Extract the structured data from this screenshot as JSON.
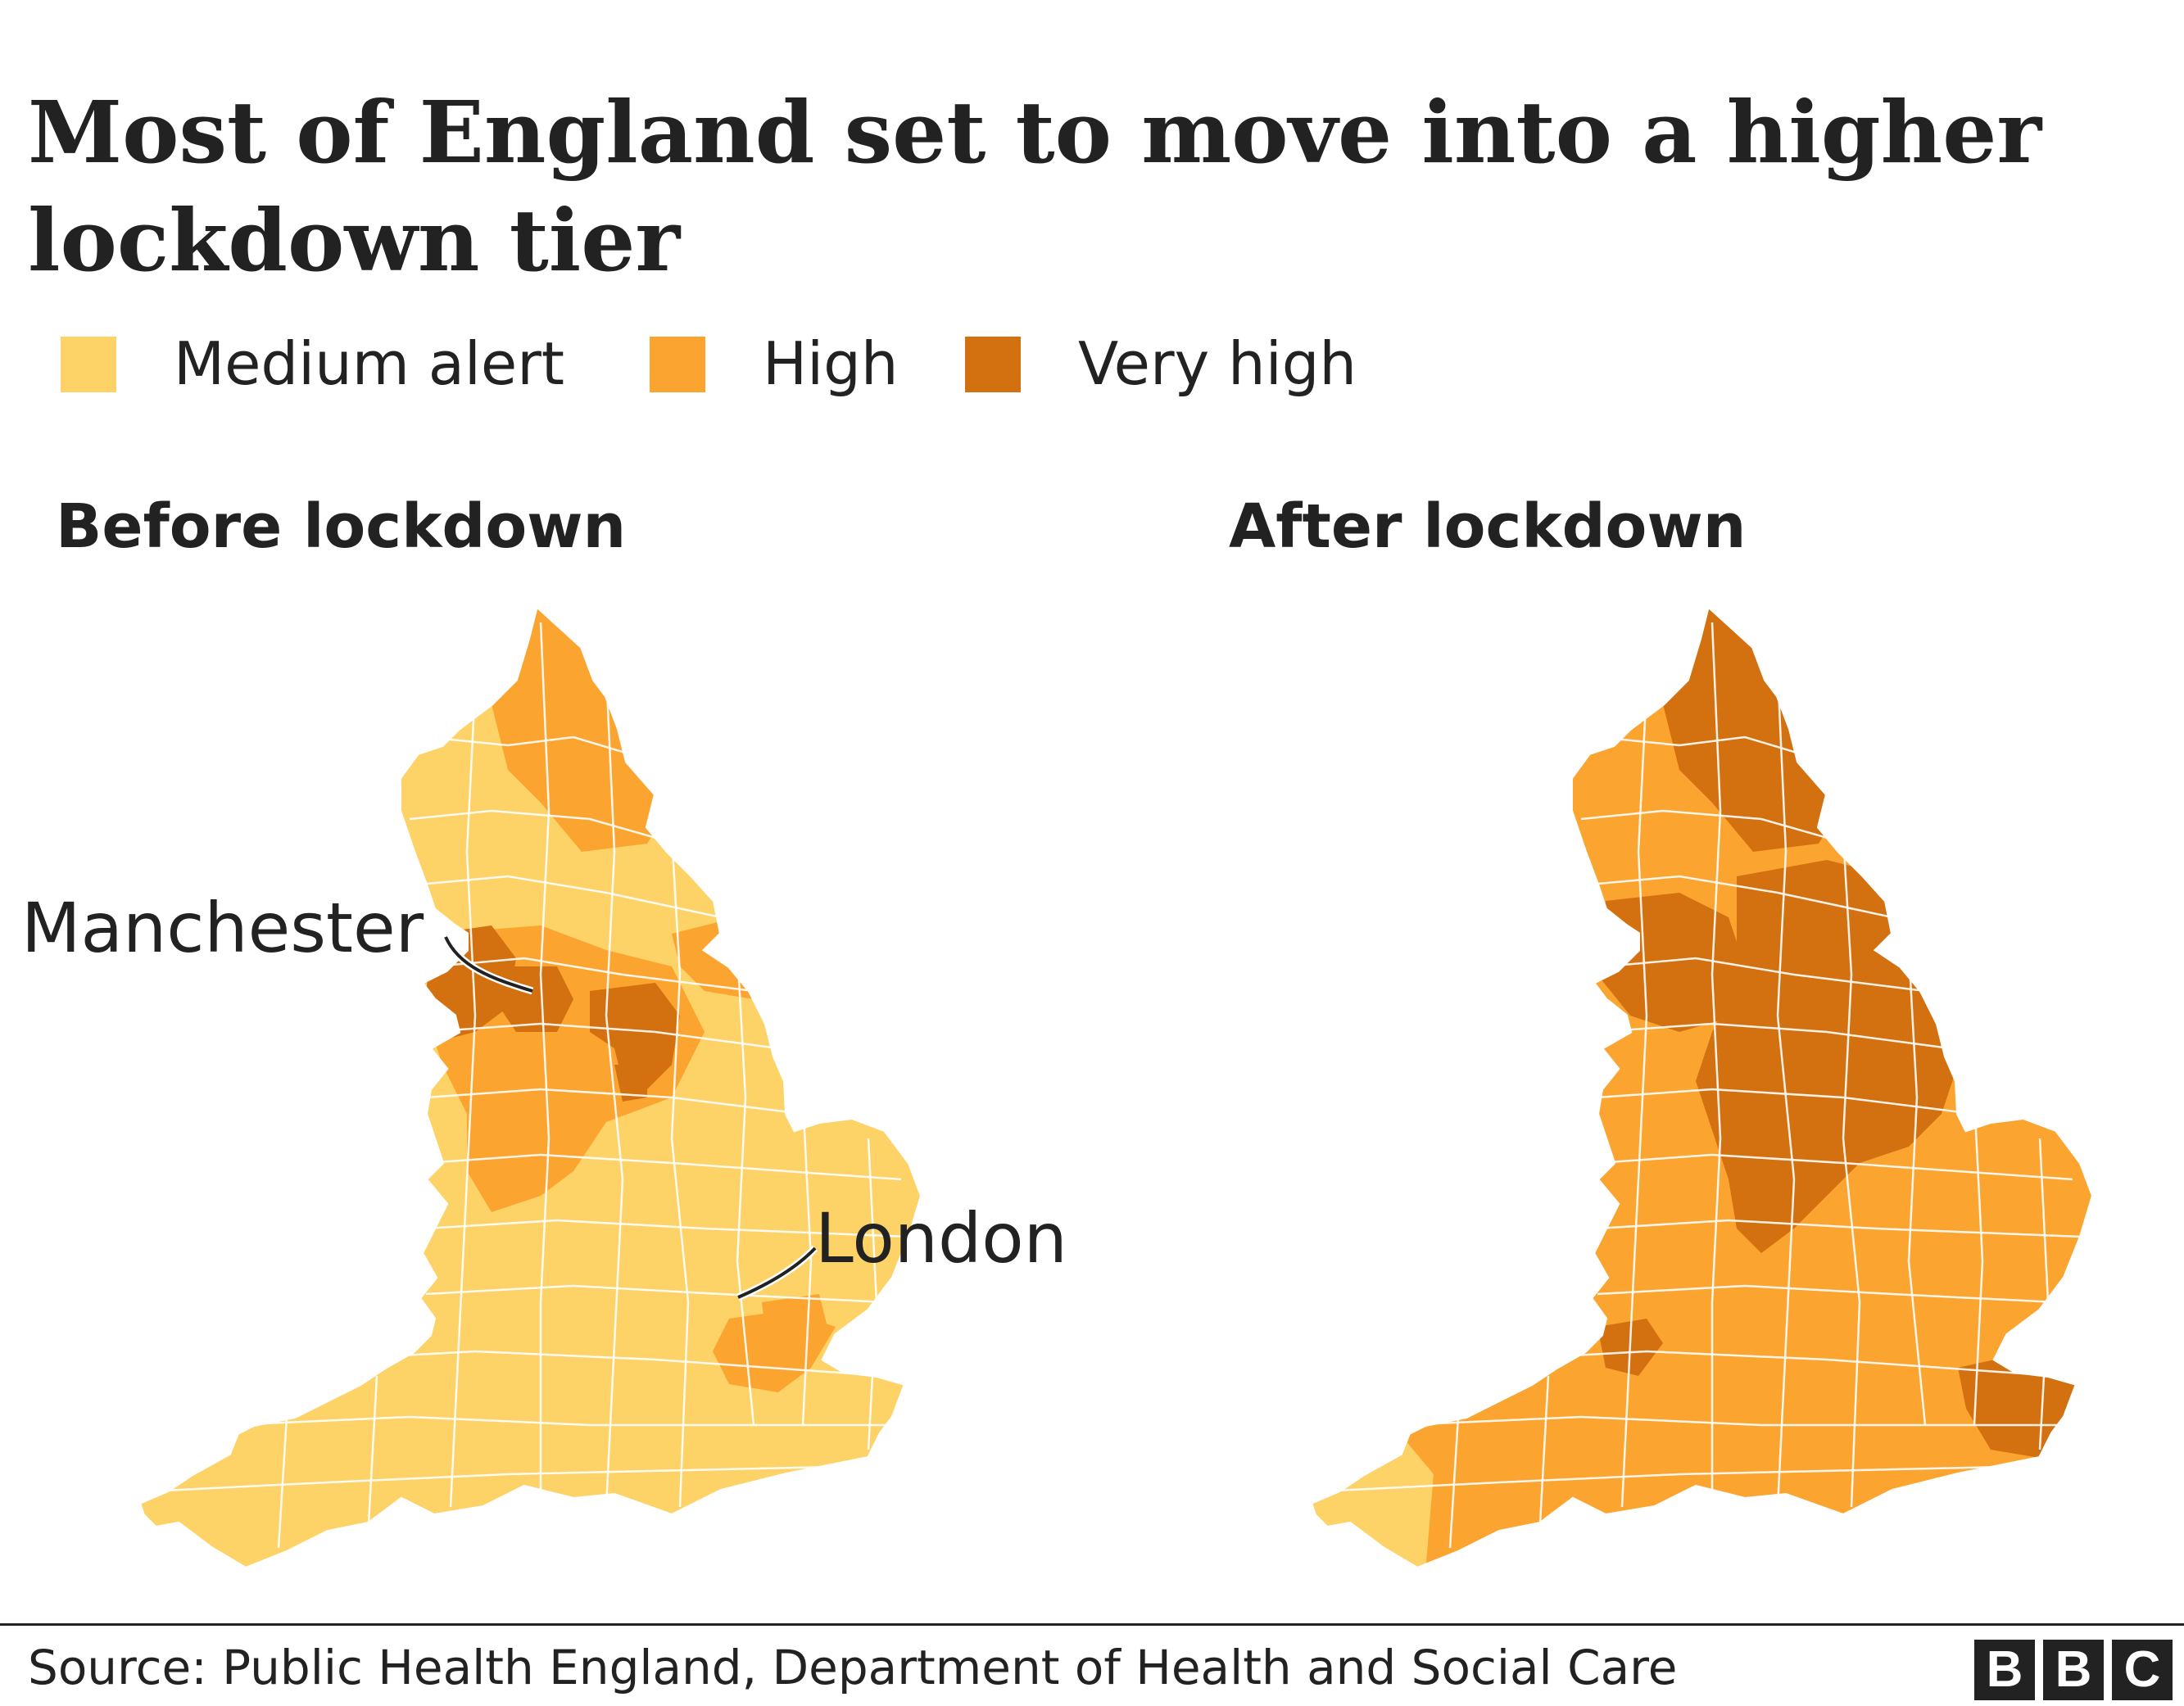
{
  "title": "Most of England set to move into a higher lockdown tier",
  "legend": [
    {
      "label": "Medium alert",
      "color": "#fdd267"
    },
    {
      "label": "High",
      "color": "#fba42f"
    },
    {
      "label": "Very high",
      "color": "#d3700f"
    }
  ],
  "maps": [
    {
      "title": "Before lockdown",
      "base_tier": "Medium alert"
    },
    {
      "title": "After lockdown",
      "base_tier": "High"
    }
  ],
  "callouts": {
    "manchester": "Manchester",
    "london": "London"
  },
  "source": "Source: Public Health England, Department of Health and Social Care",
  "logo": {
    "letters": [
      "B",
      "B",
      "C"
    ]
  }
}
